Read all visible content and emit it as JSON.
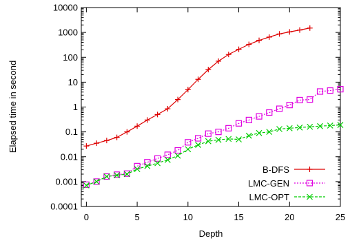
{
  "chart_data": {
    "type": "line",
    "title": "",
    "xlabel": "Depth",
    "ylabel": "Elapsed time in second",
    "xlim": [
      -0.5,
      25
    ],
    "ylim": [
      0.0001,
      10000
    ],
    "yscale": "log",
    "x_ticks": [
      0,
      5,
      10,
      15,
      20,
      25
    ],
    "x_tick_labels": [
      "0",
      "5",
      "10",
      "15",
      "20",
      "25"
    ],
    "y_ticks": [
      0.0001,
      0.001,
      0.01,
      0.1,
      1,
      10,
      100,
      1000,
      10000
    ],
    "y_tick_labels": [
      "0.0001",
      "0.001",
      "0.01",
      "0.1",
      "1",
      "10",
      "100",
      "1000",
      "10000"
    ],
    "grid": false,
    "legend_position": "bottom-right",
    "series": [
      {
        "name": "B-DFS",
        "color": "#dd0000",
        "marker": "plus",
        "dash": "",
        "x": [
          0,
          1,
          2,
          3,
          4,
          5,
          6,
          7,
          8,
          9,
          10,
          11,
          12,
          13,
          14,
          15,
          16,
          17,
          18,
          19,
          20,
          21,
          22
        ],
        "y": [
          0.027,
          0.035,
          0.045,
          0.06,
          0.1,
          0.17,
          0.3,
          0.5,
          0.85,
          2,
          5,
          13,
          32,
          70,
          130,
          210,
          330,
          480,
          650,
          870,
          1050,
          1250,
          1500
        ]
      },
      {
        "name": "LMC-GEN",
        "color": "#e000e0",
        "marker": "square",
        "dash": "2,2",
        "x": [
          0,
          1,
          2,
          3,
          4,
          5,
          6,
          7,
          8,
          9,
          10,
          11,
          12,
          13,
          14,
          15,
          16,
          17,
          18,
          19,
          20,
          21,
          22,
          23,
          24,
          25
        ],
        "y": [
          0.00075,
          0.001,
          0.0016,
          0.0019,
          0.0021,
          0.0042,
          0.006,
          0.0085,
          0.012,
          0.018,
          0.038,
          0.055,
          0.085,
          0.1,
          0.14,
          0.22,
          0.3,
          0.42,
          0.6,
          0.85,
          1.2,
          1.9,
          2,
          4.2,
          4.6,
          5.2
        ]
      },
      {
        "name": "LMC-OPT",
        "color": "#00cc00",
        "marker": "x",
        "dash": "4,2",
        "x": [
          0,
          1,
          2,
          3,
          4,
          5,
          6,
          7,
          8,
          9,
          10,
          11,
          12,
          13,
          14,
          15,
          16,
          17,
          18,
          19,
          20,
          21,
          22,
          23,
          24,
          25
        ],
        "y": [
          0.0007,
          0.001,
          0.0016,
          0.0018,
          0.002,
          0.0032,
          0.0042,
          0.0055,
          0.0075,
          0.011,
          0.02,
          0.03,
          0.042,
          0.048,
          0.052,
          0.05,
          0.07,
          0.09,
          0.1,
          0.13,
          0.14,
          0.15,
          0.16,
          0.17,
          0.18,
          0.19
        ]
      }
    ]
  }
}
